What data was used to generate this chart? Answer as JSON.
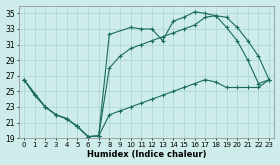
{
  "title": "",
  "xlabel": "Humidex (Indice chaleur)",
  "bg_color": "#ceecea",
  "grid_color": "#a8d5d2",
  "line_color": "#1a6b5e",
  "xlim": [
    -0.5,
    23.5
  ],
  "ylim": [
    19,
    36
  ],
  "xticks": [
    0,
    1,
    2,
    3,
    4,
    5,
    6,
    7,
    8,
    9,
    10,
    11,
    12,
    13,
    14,
    15,
    16,
    17,
    18,
    19,
    20,
    21,
    22,
    23
  ],
  "yticks": [
    19,
    21,
    23,
    25,
    27,
    29,
    31,
    33,
    35
  ],
  "line1_x": [
    0,
    1,
    2,
    3,
    4,
    5,
    6,
    7,
    8,
    10,
    11,
    12,
    13,
    14,
    15,
    16,
    17,
    18,
    19,
    20,
    21,
    22,
    23
  ],
  "line1_y": [
    26.5,
    24.5,
    23,
    22,
    21.5,
    20.5,
    19.2,
    19.3,
    32.3,
    33.2,
    33.0,
    33.0,
    31.5,
    34.0,
    34.5,
    35.2,
    35.0,
    34.7,
    33.2,
    31.5,
    29.0,
    26.0,
    26.5
  ],
  "line2_x": [
    0,
    2,
    3,
    4,
    5,
    6,
    7,
    8,
    9,
    10,
    11,
    12,
    13,
    14,
    15,
    16,
    17,
    18,
    19,
    20,
    21,
    22,
    23
  ],
  "line2_y": [
    26.5,
    23.0,
    22.0,
    21.5,
    20.5,
    19.2,
    19.3,
    28.0,
    29.5,
    30.5,
    31.0,
    31.5,
    32.0,
    32.5,
    33.0,
    33.5,
    34.5,
    34.7,
    34.5,
    33.2,
    31.5,
    29.5,
    26.5
  ],
  "line3_x": [
    0,
    1,
    2,
    3,
    4,
    5,
    6,
    7,
    8,
    9,
    10,
    11,
    12,
    13,
    14,
    15,
    16,
    17,
    18,
    19,
    20,
    21,
    22,
    23
  ],
  "line3_y": [
    26.5,
    24.5,
    23.0,
    22.0,
    21.5,
    20.5,
    19.2,
    19.3,
    22.0,
    22.5,
    23.0,
    23.5,
    24.0,
    24.5,
    25.0,
    25.5,
    26.0,
    26.5,
    26.2,
    25.5,
    25.5,
    25.5,
    25.5,
    26.5
  ]
}
